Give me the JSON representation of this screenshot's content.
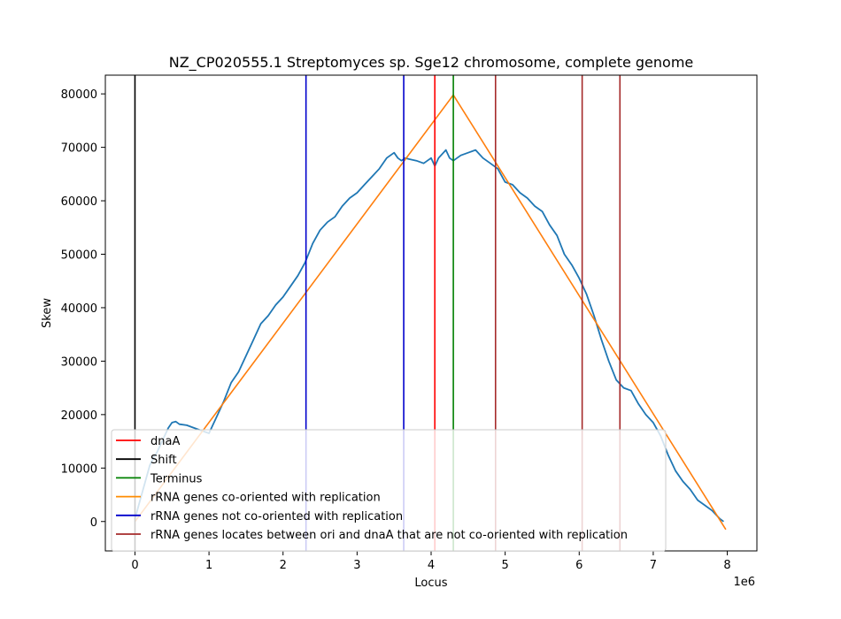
{
  "chart_data": {
    "type": "line",
    "title": "NZ_CP020555.1 Streptomyces sp. Sge12 chromosome, complete genome",
    "xlabel": "Locus",
    "ylabel": "Skew",
    "x_offset_label": "1e6",
    "xlim": [
      -0.4,
      8.4
    ],
    "ylim": [
      -5500,
      83500
    ],
    "x_scale_multiplier": 1000000,
    "x_ticks": [
      0,
      1,
      2,
      3,
      4,
      5,
      6,
      7,
      8
    ],
    "x_tick_labels": [
      "0",
      "1",
      "2",
      "3",
      "4",
      "5",
      "6",
      "7",
      "8"
    ],
    "y_ticks": [
      0,
      10000,
      20000,
      30000,
      40000,
      50000,
      60000,
      70000,
      80000
    ],
    "y_tick_labels": [
      "0",
      "10000",
      "20000",
      "30000",
      "40000",
      "50000",
      "60000",
      "70000",
      "80000"
    ],
    "grid": false,
    "legend_position": "lower-left",
    "series": [
      {
        "name": "Skew",
        "color": "#1f77b4",
        "kind": "line",
        "x": [
          0,
          0.05,
          0.1,
          0.15,
          0.2,
          0.25,
          0.3,
          0.35,
          0.4,
          0.45,
          0.5,
          0.55,
          0.6,
          0.7,
          0.8,
          0.9,
          1.0,
          1.05,
          1.1,
          1.2,
          1.3,
          1.4,
          1.5,
          1.6,
          1.7,
          1.8,
          1.9,
          2.0,
          2.1,
          2.2,
          2.3,
          2.4,
          2.5,
          2.6,
          2.7,
          2.8,
          2.9,
          3.0,
          3.1,
          3.2,
          3.3,
          3.4,
          3.5,
          3.55,
          3.6,
          3.65,
          3.7,
          3.8,
          3.9,
          4.0,
          4.05,
          4.1,
          4.2,
          4.25,
          4.3,
          4.4,
          4.5,
          4.6,
          4.7,
          4.8,
          4.9,
          5.0,
          5.1,
          5.2,
          5.3,
          5.4,
          5.5,
          5.6,
          5.7,
          5.8,
          5.9,
          6.0,
          6.1,
          6.2,
          6.3,
          6.4,
          6.5,
          6.6,
          6.7,
          6.8,
          6.9,
          7.0,
          7.1,
          7.2,
          7.3,
          7.4,
          7.5,
          7.6,
          7.7,
          7.8,
          7.9,
          7.95
        ],
        "y": [
          500,
          3000,
          5500,
          8000,
          10500,
          12000,
          13000,
          14500,
          16000,
          17500,
          18500,
          18700,
          18200,
          18000,
          17500,
          17000,
          16500,
          18000,
          19500,
          22500,
          26000,
          28000,
          31000,
          34000,
          37000,
          38500,
          40500,
          42000,
          44000,
          46000,
          48500,
          52000,
          54500,
          56000,
          57000,
          59000,
          60500,
          61500,
          63000,
          64500,
          66000,
          68000,
          69000,
          68000,
          67500,
          68000,
          67800,
          67500,
          67000,
          68000,
          66500,
          68000,
          69500,
          68000,
          67500,
          68500,
          69000,
          69500,
          68000,
          67000,
          66000,
          63500,
          63000,
          61500,
          60500,
          59000,
          58000,
          55500,
          53500,
          50000,
          48000,
          45500,
          42500,
          38500,
          34000,
          30000,
          26500,
          25000,
          24500,
          22000,
          20000,
          18500,
          16000,
          12500,
          9500,
          7500,
          6000,
          4000,
          3000,
          2000,
          500,
          0
        ]
      },
      {
        "name": "rRNA genes co-oriented with replication",
        "color": "#ff7f0e",
        "kind": "line",
        "x": [
          0,
          4.3,
          7.98
        ],
        "y": [
          0,
          79800,
          -1500
        ]
      }
    ],
    "vlines": [
      {
        "name": "Shift",
        "color": "#000000",
        "x": [
          0
        ]
      },
      {
        "name": "rRNA genes not co-oriented with replication",
        "color": "#0000cc",
        "x": [
          2.31,
          3.63
        ]
      },
      {
        "name": "dnaA",
        "color": "#ff0000",
        "x": [
          4.05
        ]
      },
      {
        "name": "Terminus",
        "color": "#008000",
        "x": [
          4.3
        ]
      },
      {
        "name": "rRNA genes locates between ori and dnaA that are not co-oriented with replication",
        "color": "#a52a2a",
        "x": [
          4.87,
          6.04,
          6.55
        ]
      }
    ],
    "legend": [
      {
        "label": "dnaA",
        "color": "#ff0000"
      },
      {
        "label": "Shift",
        "color": "#000000"
      },
      {
        "label": "Terminus",
        "color": "#008000"
      },
      {
        "label": "rRNA genes co-oriented with replication",
        "color": "#ff8c00"
      },
      {
        "label": "rRNA genes not co-oriented with replication",
        "color": "#0000cc"
      },
      {
        "label": "rRNA genes locates between ori and dnaA that are not co-oriented with replication",
        "color": "#a52a2a"
      }
    ]
  }
}
